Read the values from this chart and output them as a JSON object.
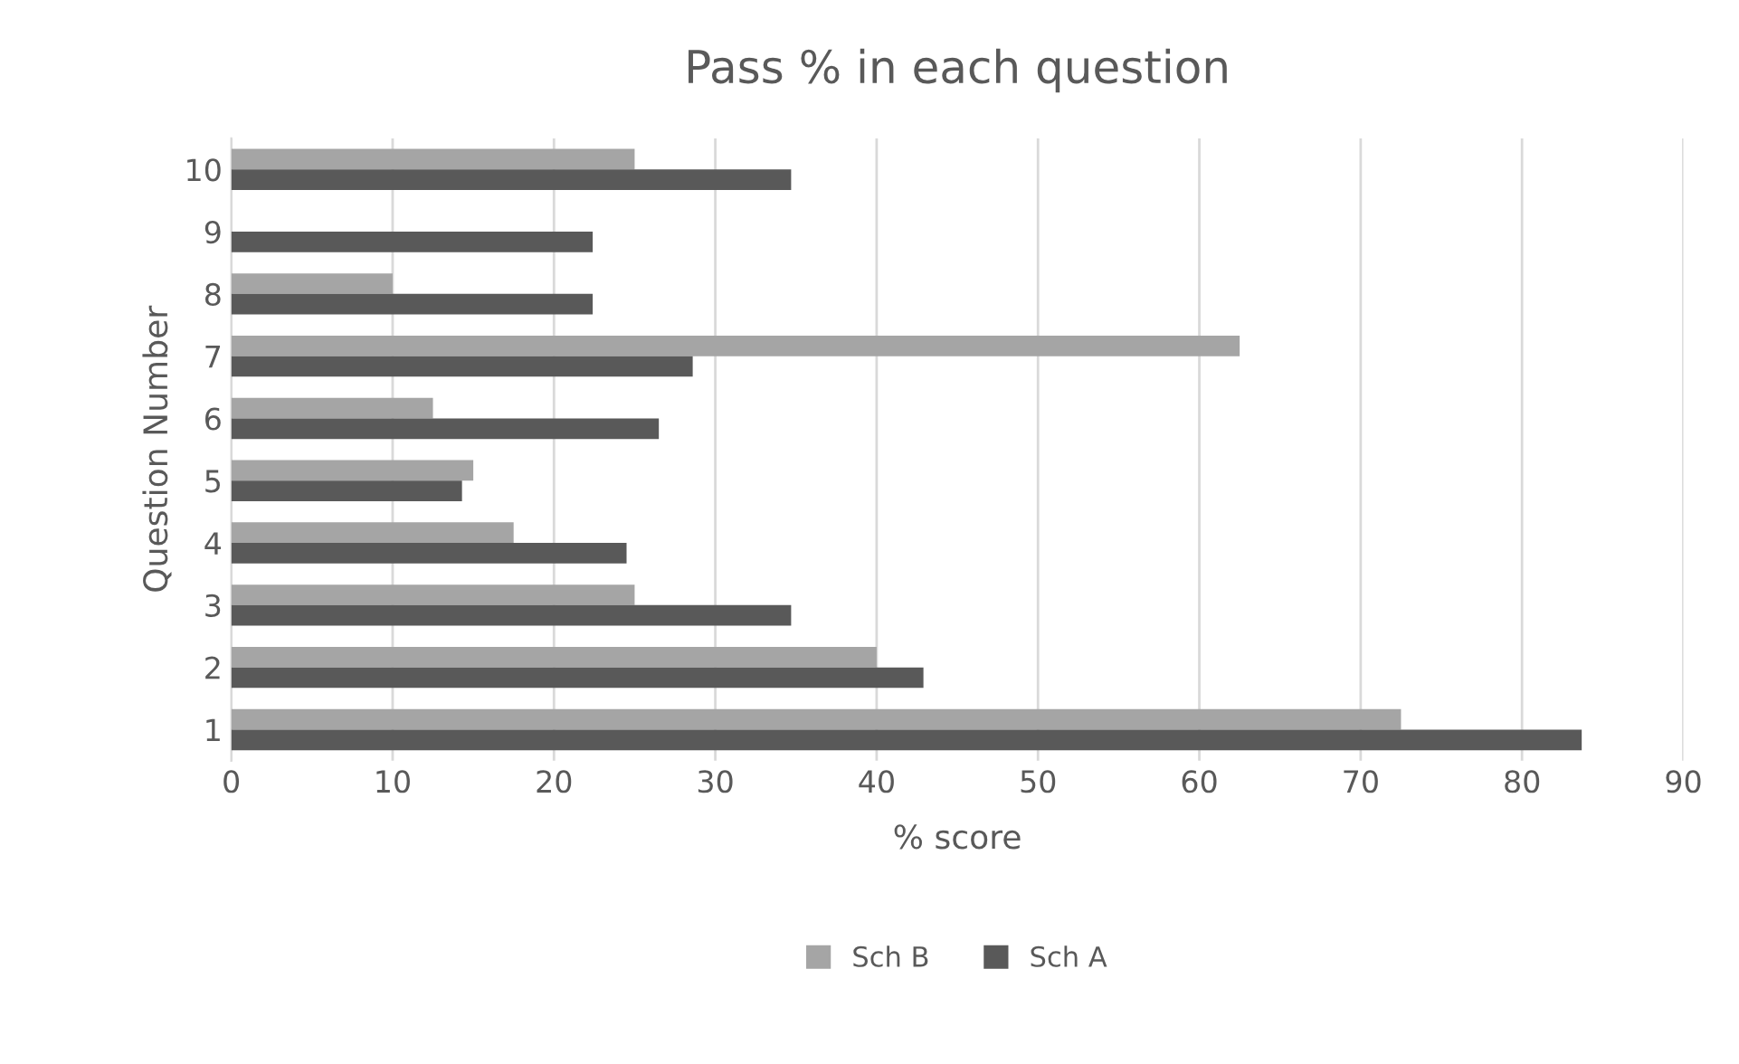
{
  "chart_data": {
    "type": "bar",
    "orientation": "horizontal",
    "title": "Pass % in each question",
    "xlabel": "% score",
    "ylabel": "Question Number",
    "categories": [
      "10",
      "9",
      "8",
      "7",
      "6",
      "5",
      "4",
      "3",
      "2",
      "1"
    ],
    "series": [
      {
        "name": "Sch B",
        "color": "#a5a5a5",
        "values": [
          25,
          0,
          10,
          62.5,
          12.5,
          15,
          17.5,
          25,
          40,
          72.5
        ]
      },
      {
        "name": "Sch A",
        "color": "#595959",
        "values": [
          34.7,
          22.4,
          22.4,
          28.6,
          26.5,
          14.3,
          24.5,
          34.7,
          42.9,
          83.7
        ]
      }
    ],
    "xlim": [
      0,
      90
    ],
    "xticks": [
      0,
      10,
      20,
      30,
      40,
      50,
      60,
      70,
      80,
      90
    ],
    "grid": "x",
    "legend": "bottom"
  }
}
